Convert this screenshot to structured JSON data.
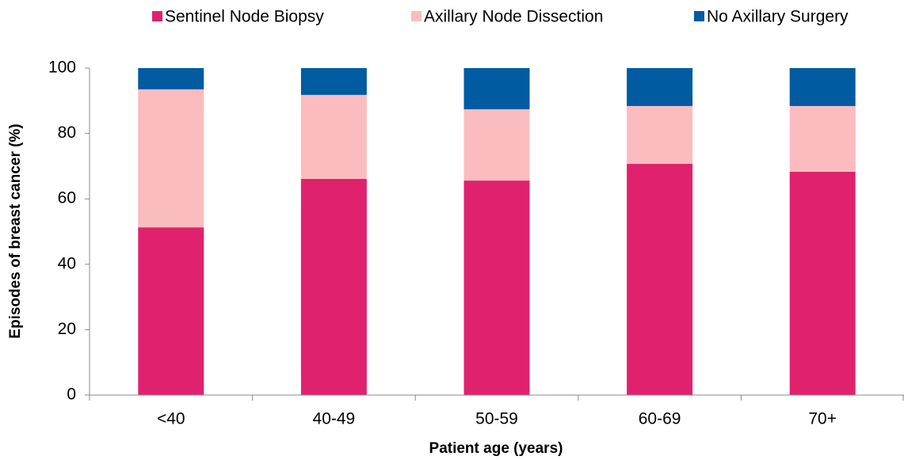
{
  "chart_data": {
    "type": "stacked-bar",
    "xlabel": "Patient age (years)",
    "ylabel": "Episodes of breast cancer (%)",
    "categories": [
      "<40",
      "40-49",
      "50-59",
      "60-69",
      "70+"
    ],
    "series": [
      {
        "name": "Sentinel Node Biopsy",
        "color": "#e0226e",
        "values": [
          51.3,
          66.1,
          65.6,
          70.7,
          68.3
        ]
      },
      {
        "name": "Axillary Node Dissection",
        "color": "#fbbcbf",
        "values": [
          42.2,
          25.7,
          21.8,
          17.7,
          20.1
        ]
      },
      {
        "name": "No Axillary Surgery",
        "color": "#005ba1",
        "values": [
          6.5,
          8.2,
          12.6,
          11.6,
          11.6
        ]
      }
    ],
    "ylim": [
      0,
      100
    ],
    "yticks": [
      0,
      20,
      40,
      60,
      80,
      100
    ],
    "grid": false,
    "legend": "top"
  }
}
